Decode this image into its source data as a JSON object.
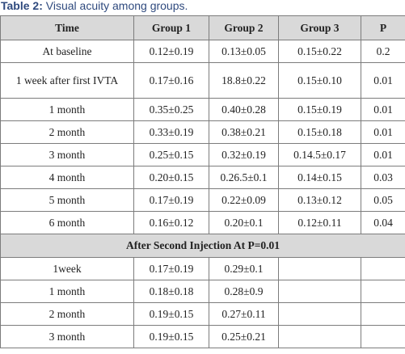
{
  "caption": {
    "label": "Table 2:",
    "text": " Visual acuity among groups."
  },
  "columns": [
    "Time",
    "Group 1",
    "Group 2",
    "Group 3",
    "P"
  ],
  "rows": [
    [
      "At baseline",
      "0.12±0.19",
      "0.13±0.05",
      "0.15±0.22",
      "0.2"
    ],
    [
      "1 week after first IVTA",
      "0.17±0.16",
      "18.8±0.22",
      "0.15±0.10",
      "0.01"
    ],
    [
      "1 month",
      "0.35±0.25",
      "0.40±0.28",
      "0.15±0.19",
      "0.01"
    ],
    [
      "2 month",
      "0.33±0.19",
      "0.38±0.21",
      "0.15±0.18",
      "0.01"
    ],
    [
      "3 month",
      "0.25±0.15",
      "0.32±0.19",
      "0.14.5±0.17",
      "0.01"
    ],
    [
      "4 month",
      "0.20±0.15",
      "0.26.5±0.1",
      "0.14±0.15",
      "0.03"
    ],
    [
      "5 month",
      "0.17±0.19",
      "0.22±0.09",
      "0.13±0.12",
      "0.05"
    ],
    [
      "6 month",
      "0.16±0.12",
      "0.20±0.1",
      "0.12±0.11",
      "0.04"
    ]
  ],
  "section_title": "After Second Injection At P=0.01",
  "section_rows": [
    [
      "1week",
      "0.17±0.19",
      "0.29±0.1",
      "",
      ""
    ],
    [
      "1 month",
      "0.18±0.18",
      "0.28±0.9",
      "",
      ""
    ],
    [
      "2 month",
      "0.19±0.15",
      "0.27±0.11",
      "",
      ""
    ],
    [
      "3 month",
      "0.19±0.15",
      "0.25±0.21",
      "",
      ""
    ]
  ]
}
